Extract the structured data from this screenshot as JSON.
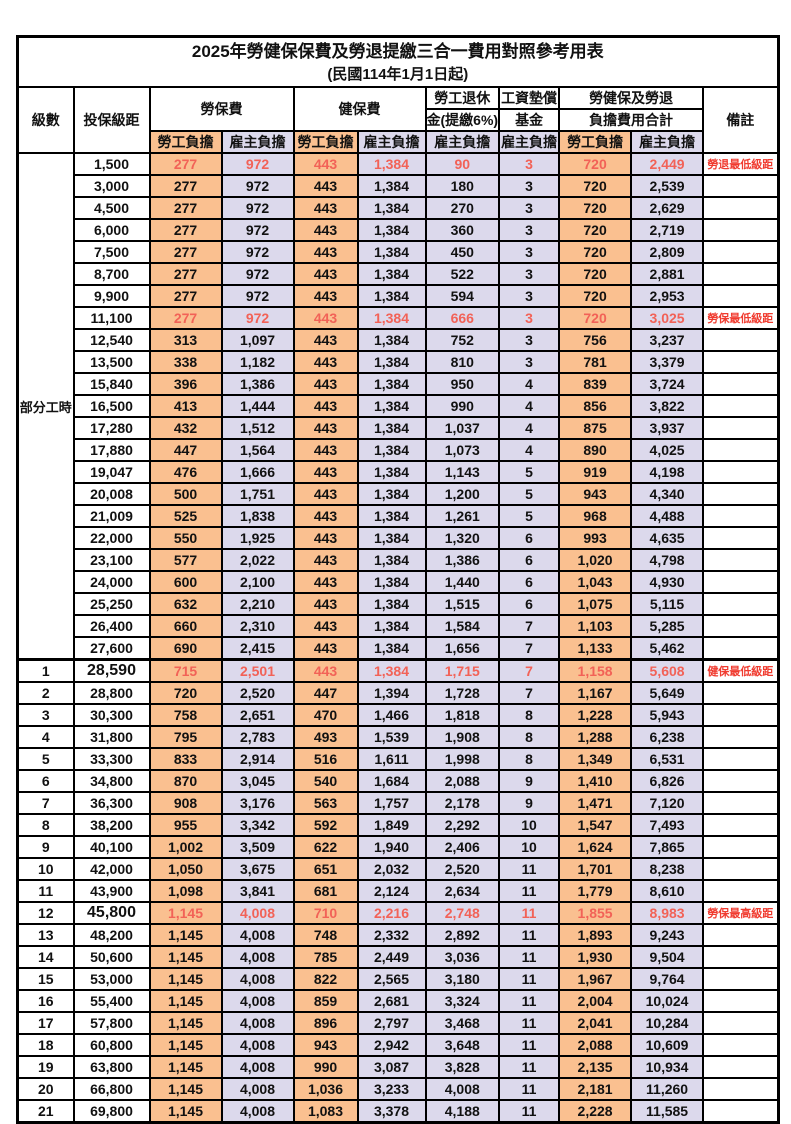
{
  "title": {
    "main": "2025年勞健保保費及勞退提繳三合一費用對照參考用表",
    "sub": "(民國114年1月1日起)"
  },
  "colors": {
    "worker_bg": "#FAC090",
    "employer_bg": "#DCD9EC",
    "value_red": "#F26257",
    "remark_red": "#F03B2F"
  },
  "header": {
    "grade": "級數",
    "bracket": "投保級距",
    "labor_insurance": "勞保費",
    "health_insurance": "健保費",
    "pension_line1": "勞工退休",
    "pension_line2": "金(提繳6%)",
    "wage_fund_line1": "工資墊償",
    "wage_fund_line2": "基金",
    "total_line1": "勞健保及勞退",
    "total_line2": "負擔費用合計",
    "remark": "備註",
    "worker": "勞工負擔",
    "employer": "雇主負擔"
  },
  "part_time_label": "部分工時",
  "part_time_rowspan": 23,
  "section_break_index": 23,
  "value_column_types": [
    "w",
    "e",
    "w",
    "e",
    "e",
    "e",
    "w",
    "e"
  ],
  "rows": [
    {
      "grade": "",
      "bracket": "1,500",
      "values": [
        "277",
        "972",
        "443",
        "1,384",
        "90",
        "3",
        "720",
        "2,449"
      ],
      "remark": "勞退最低級距",
      "highlight": true,
      "bold_bracket": false
    },
    {
      "grade": "",
      "bracket": "3,000",
      "values": [
        "277",
        "972",
        "443",
        "1,384",
        "180",
        "3",
        "720",
        "2,539"
      ],
      "remark": "",
      "highlight": false,
      "bold_bracket": false
    },
    {
      "grade": "",
      "bracket": "4,500",
      "values": [
        "277",
        "972",
        "443",
        "1,384",
        "270",
        "3",
        "720",
        "2,629"
      ],
      "remark": "",
      "highlight": false,
      "bold_bracket": false
    },
    {
      "grade": "",
      "bracket": "6,000",
      "values": [
        "277",
        "972",
        "443",
        "1,384",
        "360",
        "3",
        "720",
        "2,719"
      ],
      "remark": "",
      "highlight": false,
      "bold_bracket": false
    },
    {
      "grade": "",
      "bracket": "7,500",
      "values": [
        "277",
        "972",
        "443",
        "1,384",
        "450",
        "3",
        "720",
        "2,809"
      ],
      "remark": "",
      "highlight": false,
      "bold_bracket": false
    },
    {
      "grade": "",
      "bracket": "8,700",
      "values": [
        "277",
        "972",
        "443",
        "1,384",
        "522",
        "3",
        "720",
        "2,881"
      ],
      "remark": "",
      "highlight": false,
      "bold_bracket": false
    },
    {
      "grade": "",
      "bracket": "9,900",
      "values": [
        "277",
        "972",
        "443",
        "1,384",
        "594",
        "3",
        "720",
        "2,953"
      ],
      "remark": "",
      "highlight": false,
      "bold_bracket": false
    },
    {
      "grade": "",
      "bracket": "11,100",
      "values": [
        "277",
        "972",
        "443",
        "1,384",
        "666",
        "3",
        "720",
        "3,025"
      ],
      "remark": "勞保最低級距",
      "highlight": true,
      "bold_bracket": false
    },
    {
      "grade": "",
      "bracket": "12,540",
      "values": [
        "313",
        "1,097",
        "443",
        "1,384",
        "752",
        "3",
        "756",
        "3,237"
      ],
      "remark": "",
      "highlight": false,
      "bold_bracket": false
    },
    {
      "grade": "",
      "bracket": "13,500",
      "values": [
        "338",
        "1,182",
        "443",
        "1,384",
        "810",
        "3",
        "781",
        "3,379"
      ],
      "remark": "",
      "highlight": false,
      "bold_bracket": false
    },
    {
      "grade": "",
      "bracket": "15,840",
      "values": [
        "396",
        "1,386",
        "443",
        "1,384",
        "950",
        "4",
        "839",
        "3,724"
      ],
      "remark": "",
      "highlight": false,
      "bold_bracket": false
    },
    {
      "grade": "",
      "bracket": "16,500",
      "values": [
        "413",
        "1,444",
        "443",
        "1,384",
        "990",
        "4",
        "856",
        "3,822"
      ],
      "remark": "",
      "highlight": false,
      "bold_bracket": false
    },
    {
      "grade": "",
      "bracket": "17,280",
      "values": [
        "432",
        "1,512",
        "443",
        "1,384",
        "1,037",
        "4",
        "875",
        "3,937"
      ],
      "remark": "",
      "highlight": false,
      "bold_bracket": false
    },
    {
      "grade": "",
      "bracket": "17,880",
      "values": [
        "447",
        "1,564",
        "443",
        "1,384",
        "1,073",
        "4",
        "890",
        "4,025"
      ],
      "remark": "",
      "highlight": false,
      "bold_bracket": false
    },
    {
      "grade": "",
      "bracket": "19,047",
      "values": [
        "476",
        "1,666",
        "443",
        "1,384",
        "1,143",
        "5",
        "919",
        "4,198"
      ],
      "remark": "",
      "highlight": false,
      "bold_bracket": false
    },
    {
      "grade": "",
      "bracket": "20,008",
      "values": [
        "500",
        "1,751",
        "443",
        "1,384",
        "1,200",
        "5",
        "943",
        "4,340"
      ],
      "remark": "",
      "highlight": false,
      "bold_bracket": false
    },
    {
      "grade": "",
      "bracket": "21,009",
      "values": [
        "525",
        "1,838",
        "443",
        "1,384",
        "1,261",
        "5",
        "968",
        "4,488"
      ],
      "remark": "",
      "highlight": false,
      "bold_bracket": false
    },
    {
      "grade": "",
      "bracket": "22,000",
      "values": [
        "550",
        "1,925",
        "443",
        "1,384",
        "1,320",
        "6",
        "993",
        "4,635"
      ],
      "remark": "",
      "highlight": false,
      "bold_bracket": false
    },
    {
      "grade": "",
      "bracket": "23,100",
      "values": [
        "577",
        "2,022",
        "443",
        "1,384",
        "1,386",
        "6",
        "1,020",
        "4,798"
      ],
      "remark": "",
      "highlight": false,
      "bold_bracket": false
    },
    {
      "grade": "",
      "bracket": "24,000",
      "values": [
        "600",
        "2,100",
        "443",
        "1,384",
        "1,440",
        "6",
        "1,043",
        "4,930"
      ],
      "remark": "",
      "highlight": false,
      "bold_bracket": false
    },
    {
      "grade": "",
      "bracket": "25,250",
      "values": [
        "632",
        "2,210",
        "443",
        "1,384",
        "1,515",
        "6",
        "1,075",
        "5,115"
      ],
      "remark": "",
      "highlight": false,
      "bold_bracket": false
    },
    {
      "grade": "",
      "bracket": "26,400",
      "values": [
        "660",
        "2,310",
        "443",
        "1,384",
        "1,584",
        "7",
        "1,103",
        "5,285"
      ],
      "remark": "",
      "highlight": false,
      "bold_bracket": false
    },
    {
      "grade": "",
      "bracket": "27,600",
      "values": [
        "690",
        "2,415",
        "443",
        "1,384",
        "1,656",
        "7",
        "1,133",
        "5,462"
      ],
      "remark": "",
      "highlight": false,
      "bold_bracket": false
    },
    {
      "grade": "1",
      "bracket": "28,590",
      "values": [
        "715",
        "2,501",
        "443",
        "1,384",
        "1,715",
        "7",
        "1,158",
        "5,608"
      ],
      "remark": "健保最低級距",
      "highlight": true,
      "bold_bracket": true
    },
    {
      "grade": "2",
      "bracket": "28,800",
      "values": [
        "720",
        "2,520",
        "447",
        "1,394",
        "1,728",
        "7",
        "1,167",
        "5,649"
      ],
      "remark": "",
      "highlight": false,
      "bold_bracket": false
    },
    {
      "grade": "3",
      "bracket": "30,300",
      "values": [
        "758",
        "2,651",
        "470",
        "1,466",
        "1,818",
        "8",
        "1,228",
        "5,943"
      ],
      "remark": "",
      "highlight": false,
      "bold_bracket": false
    },
    {
      "grade": "4",
      "bracket": "31,800",
      "values": [
        "795",
        "2,783",
        "493",
        "1,539",
        "1,908",
        "8",
        "1,288",
        "6,238"
      ],
      "remark": "",
      "highlight": false,
      "bold_bracket": false
    },
    {
      "grade": "5",
      "bracket": "33,300",
      "values": [
        "833",
        "2,914",
        "516",
        "1,611",
        "1,998",
        "8",
        "1,349",
        "6,531"
      ],
      "remark": "",
      "highlight": false,
      "bold_bracket": false
    },
    {
      "grade": "6",
      "bracket": "34,800",
      "values": [
        "870",
        "3,045",
        "540",
        "1,684",
        "2,088",
        "9",
        "1,410",
        "6,826"
      ],
      "remark": "",
      "highlight": false,
      "bold_bracket": false
    },
    {
      "grade": "7",
      "bracket": "36,300",
      "values": [
        "908",
        "3,176",
        "563",
        "1,757",
        "2,178",
        "9",
        "1,471",
        "7,120"
      ],
      "remark": "",
      "highlight": false,
      "bold_bracket": false
    },
    {
      "grade": "8",
      "bracket": "38,200",
      "values": [
        "955",
        "3,342",
        "592",
        "1,849",
        "2,292",
        "10",
        "1,547",
        "7,493"
      ],
      "remark": "",
      "highlight": false,
      "bold_bracket": false
    },
    {
      "grade": "9",
      "bracket": "40,100",
      "values": [
        "1,002",
        "3,509",
        "622",
        "1,940",
        "2,406",
        "10",
        "1,624",
        "7,865"
      ],
      "remark": "",
      "highlight": false,
      "bold_bracket": false
    },
    {
      "grade": "10",
      "bracket": "42,000",
      "values": [
        "1,050",
        "3,675",
        "651",
        "2,032",
        "2,520",
        "11",
        "1,701",
        "8,238"
      ],
      "remark": "",
      "highlight": false,
      "bold_bracket": false
    },
    {
      "grade": "11",
      "bracket": "43,900",
      "values": [
        "1,098",
        "3,841",
        "681",
        "2,124",
        "2,634",
        "11",
        "1,779",
        "8,610"
      ],
      "remark": "",
      "highlight": false,
      "bold_bracket": false
    },
    {
      "grade": "12",
      "bracket": "45,800",
      "values": [
        "1,145",
        "4,008",
        "710",
        "2,216",
        "2,748",
        "11",
        "1,855",
        "8,983"
      ],
      "remark": "勞保最高級距",
      "highlight": true,
      "bold_bracket": true
    },
    {
      "grade": "13",
      "bracket": "48,200",
      "values": [
        "1,145",
        "4,008",
        "748",
        "2,332",
        "2,892",
        "11",
        "1,893",
        "9,243"
      ],
      "remark": "",
      "highlight": false,
      "bold_bracket": false
    },
    {
      "grade": "14",
      "bracket": "50,600",
      "values": [
        "1,145",
        "4,008",
        "785",
        "2,449",
        "3,036",
        "11",
        "1,930",
        "9,504"
      ],
      "remark": "",
      "highlight": false,
      "bold_bracket": false
    },
    {
      "grade": "15",
      "bracket": "53,000",
      "values": [
        "1,145",
        "4,008",
        "822",
        "2,565",
        "3,180",
        "11",
        "1,967",
        "9,764"
      ],
      "remark": "",
      "highlight": false,
      "bold_bracket": false
    },
    {
      "grade": "16",
      "bracket": "55,400",
      "values": [
        "1,145",
        "4,008",
        "859",
        "2,681",
        "3,324",
        "11",
        "2,004",
        "10,024"
      ],
      "remark": "",
      "highlight": false,
      "bold_bracket": false
    },
    {
      "grade": "17",
      "bracket": "57,800",
      "values": [
        "1,145",
        "4,008",
        "896",
        "2,797",
        "3,468",
        "11",
        "2,041",
        "10,284"
      ],
      "remark": "",
      "highlight": false,
      "bold_bracket": false
    },
    {
      "grade": "18",
      "bracket": "60,800",
      "values": [
        "1,145",
        "4,008",
        "943",
        "2,942",
        "3,648",
        "11",
        "2,088",
        "10,609"
      ],
      "remark": "",
      "highlight": false,
      "bold_bracket": false
    },
    {
      "grade": "19",
      "bracket": "63,800",
      "values": [
        "1,145",
        "4,008",
        "990",
        "3,087",
        "3,828",
        "11",
        "2,135",
        "10,934"
      ],
      "remark": "",
      "highlight": false,
      "bold_bracket": false
    },
    {
      "grade": "20",
      "bracket": "66,800",
      "values": [
        "1,145",
        "4,008",
        "1,036",
        "3,233",
        "4,008",
        "11",
        "2,181",
        "11,260"
      ],
      "remark": "",
      "highlight": false,
      "bold_bracket": false
    },
    {
      "grade": "21",
      "bracket": "69,800",
      "values": [
        "1,145",
        "4,008",
        "1,083",
        "3,378",
        "4,188",
        "11",
        "2,228",
        "11,585"
      ],
      "remark": "",
      "highlight": false,
      "bold_bracket": false
    }
  ]
}
